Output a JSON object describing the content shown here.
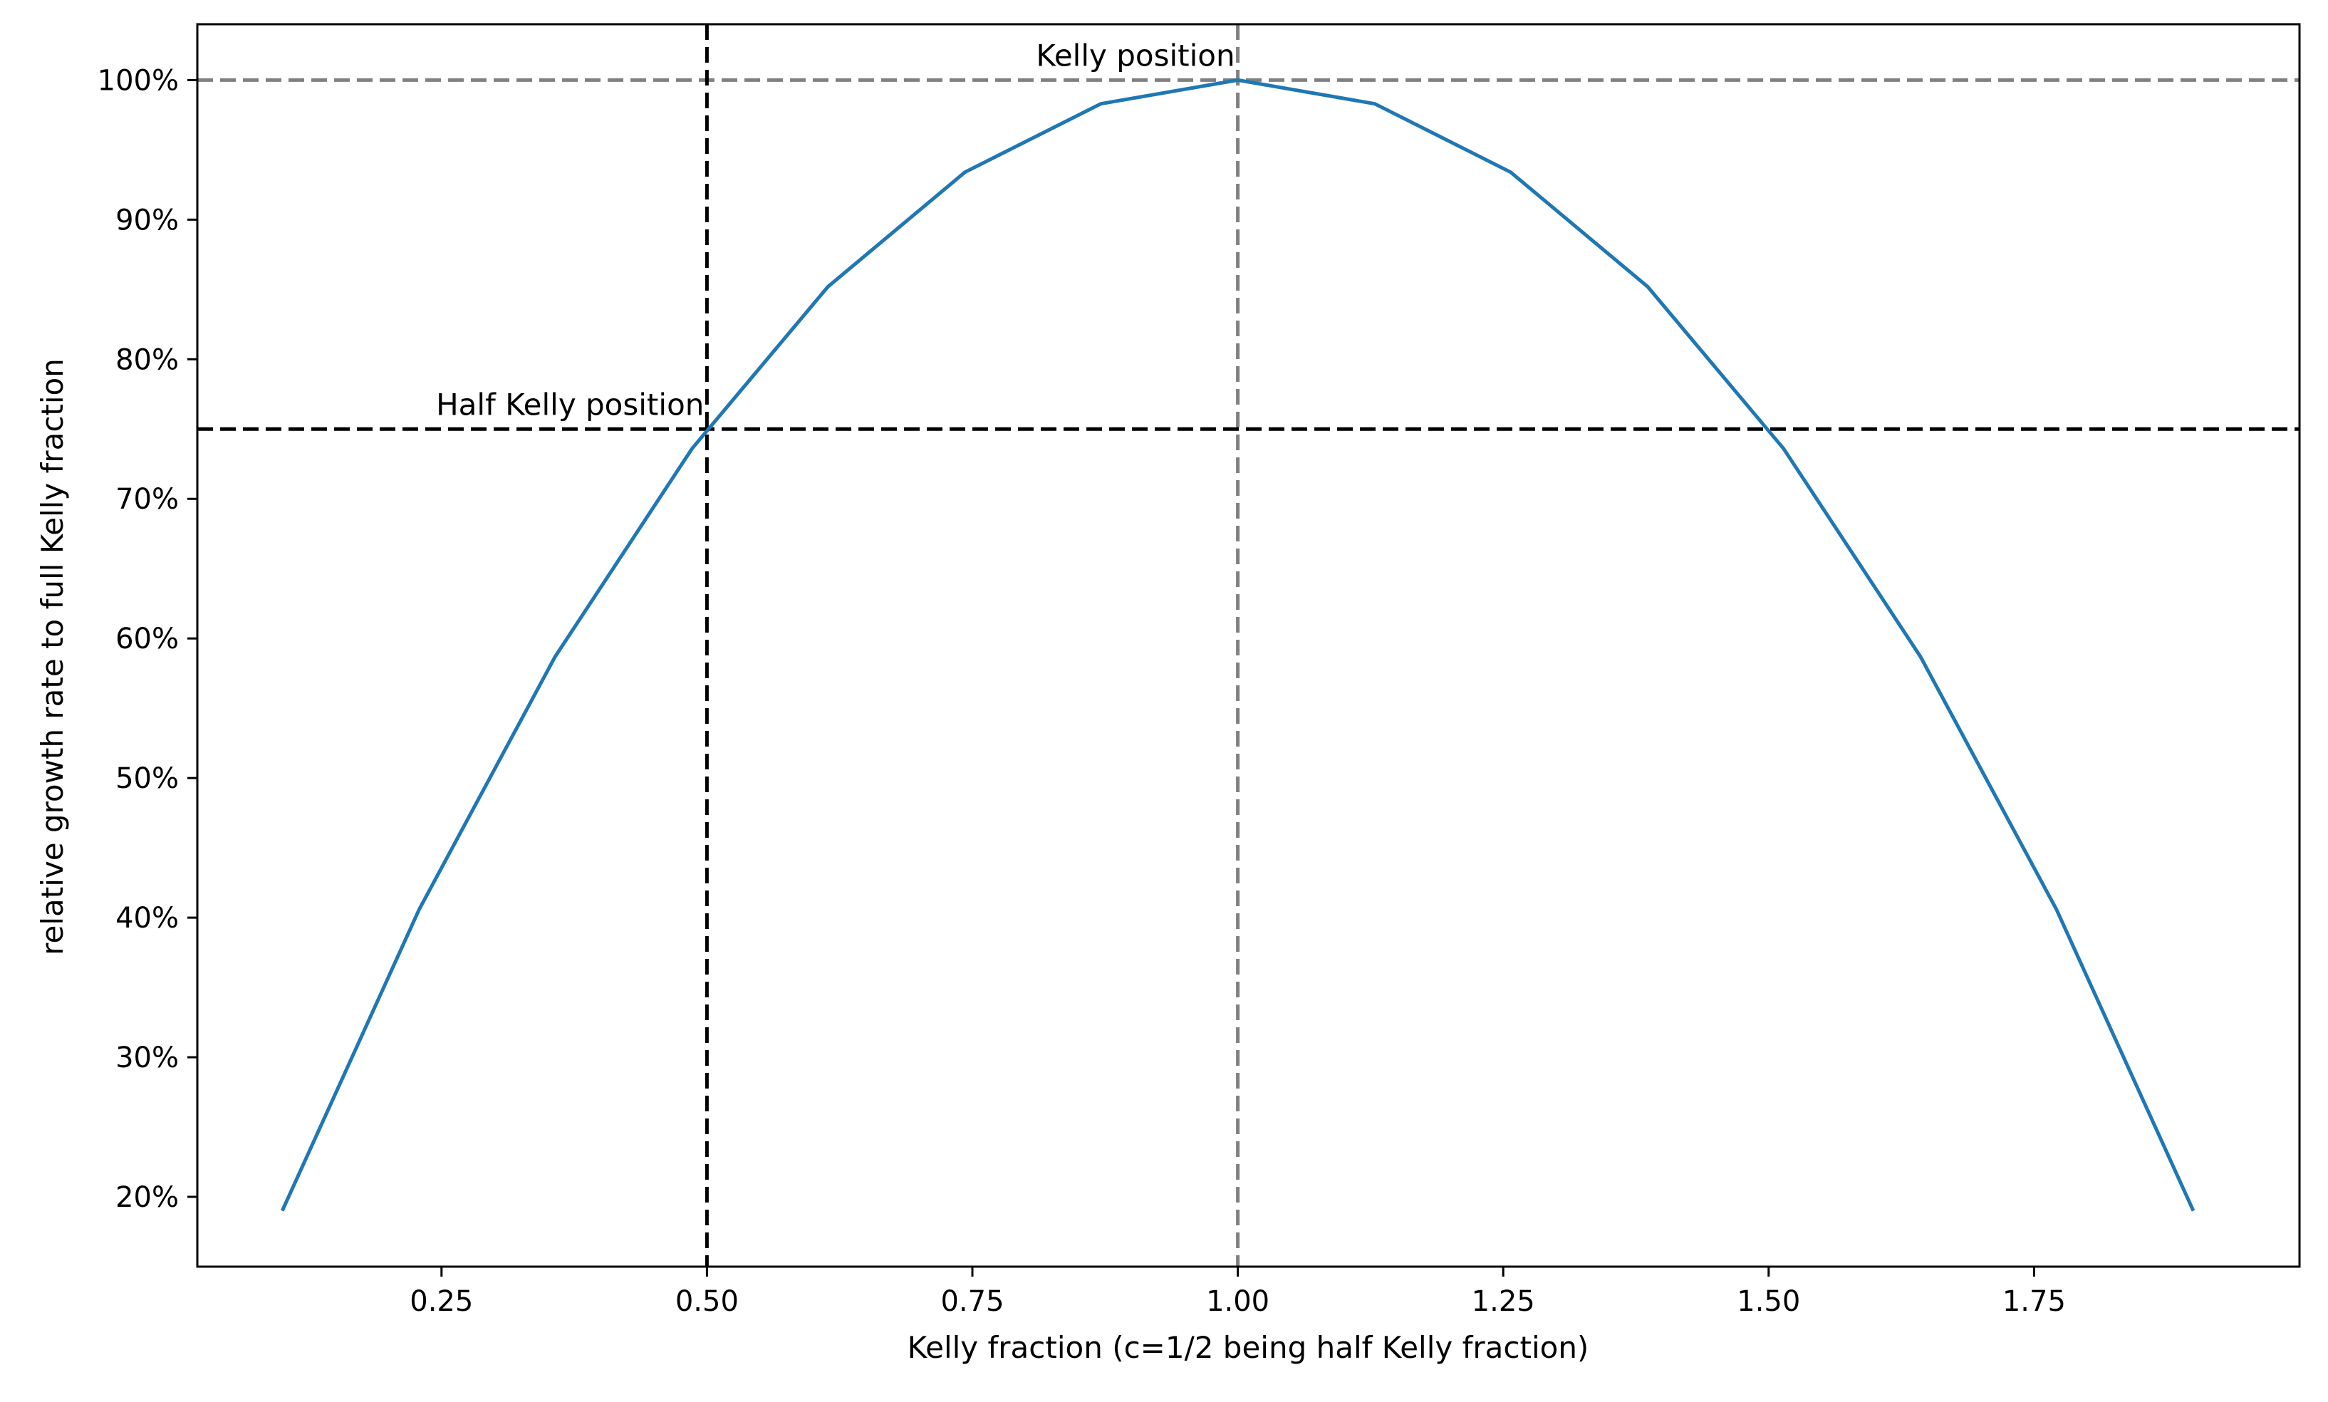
{
  "chart_data": {
    "type": "line",
    "title": "",
    "xlabel": "Kelly fraction (c=1/2 being half Kelly fraction)",
    "ylabel": "relative growth rate to full Kelly fraction",
    "xlim": [
      0.02,
      2.0
    ],
    "ylim": [
      15,
      104
    ],
    "xticks": [
      0.25,
      0.5,
      0.75,
      1.0,
      1.25,
      1.5,
      1.75
    ],
    "xtick_labels": [
      "0.25",
      "0.50",
      "0.75",
      "1.00",
      "1.25",
      "1.50",
      "1.75"
    ],
    "yticks": [
      20,
      30,
      40,
      50,
      60,
      70,
      80,
      90,
      100
    ],
    "ytick_labels": [
      "20%",
      "30%",
      "40%",
      "50%",
      "60%",
      "70%",
      "80%",
      "90%",
      "100%"
    ],
    "grid": false,
    "series": [
      {
        "color": "#1f77b4",
        "x": [
          0.1,
          0.229,
          0.357,
          0.486,
          0.614,
          0.743,
          0.871,
          1.0,
          1.129,
          1.257,
          1.386,
          1.514,
          1.643,
          1.771,
          1.9
        ],
        "y": [
          19.0,
          40.6,
          58.7,
          73.6,
          85.2,
          93.4,
          98.3,
          100.0,
          98.3,
          93.4,
          85.2,
          73.6,
          58.7,
          40.6,
          19.0
        ]
      }
    ],
    "reference_lines": [
      {
        "orientation": "horizontal",
        "value": 100,
        "color": "#808080",
        "style": "dashed"
      },
      {
        "orientation": "vertical",
        "value": 1.0,
        "color": "#808080",
        "style": "dashed"
      },
      {
        "orientation": "horizontal",
        "value": 75,
        "color": "#000000",
        "style": "dashed"
      },
      {
        "orientation": "vertical",
        "value": 0.5,
        "color": "#000000",
        "style": "dashed"
      }
    ],
    "annotations": [
      {
        "text": "Kelly position",
        "x": 1.0,
        "y": 100
      },
      {
        "text": "Half Kelly position",
        "x": 0.5,
        "y": 75
      }
    ]
  }
}
